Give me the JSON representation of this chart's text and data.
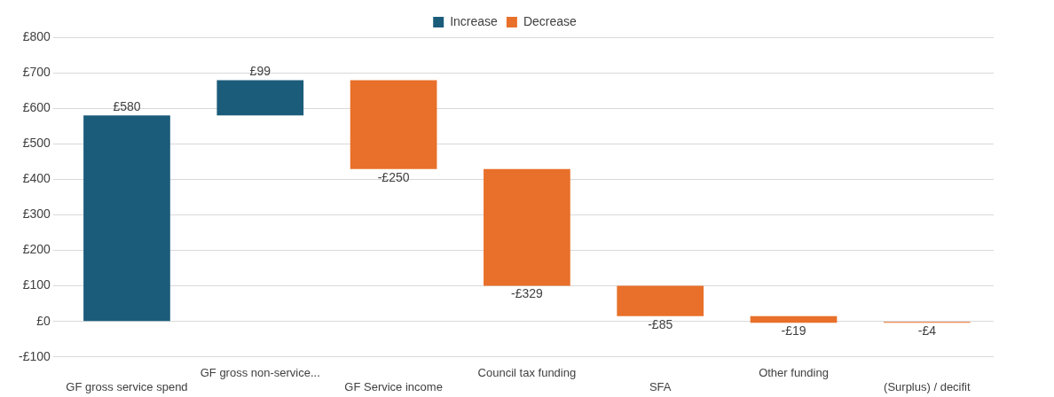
{
  "chart_data": {
    "type": "bar",
    "categories": [
      "GF gross service spend",
      "GF gross non-service...",
      "GF Service income",
      "Council tax funding",
      "SFA",
      "Other funding",
      "(Surplus) / decifit"
    ],
    "series": [
      {
        "name": "Increase",
        "color": "#1b5c7a",
        "base": [
          0,
          580,
          null,
          null,
          null,
          null,
          null
        ],
        "values": [
          580,
          99,
          null,
          null,
          null,
          null,
          null
        ],
        "value_labels": [
          "£580",
          "£99",
          null,
          null,
          null,
          null,
          null
        ]
      },
      {
        "name": "Decrease",
        "color": "#e8702a",
        "base": [
          null,
          null,
          679,
          429,
          100,
          15,
          0
        ],
        "values": [
          null,
          null,
          -250,
          -329,
          -85,
          -19,
          -4
        ],
        "value_labels": [
          null,
          null,
          "-£250",
          "-£329",
          "-£85",
          "-£19",
          "-£4"
        ]
      }
    ],
    "ylim": [
      -100,
      800
    ],
    "yticks": [
      {
        "value": -100,
        "label": "-£100"
      },
      {
        "value": 0,
        "label": "£0"
      },
      {
        "value": 100,
        "label": "£100"
      },
      {
        "value": 200,
        "label": "£200"
      },
      {
        "value": 300,
        "label": "£300"
      },
      {
        "value": 400,
        "label": "£400"
      },
      {
        "value": 500,
        "label": "£500"
      },
      {
        "value": 600,
        "label": "£600"
      },
      {
        "value": 700,
        "label": "£700"
      },
      {
        "value": 800,
        "label": "£800"
      }
    ],
    "grid": "y",
    "legend": "top"
  }
}
